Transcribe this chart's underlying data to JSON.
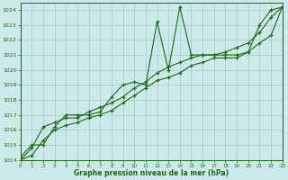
{
  "title": "Graphe pression niveau de la mer (hPa)",
  "bg_color": "#cce8e8",
  "grid_color": "#aacccc",
  "line_color": "#1a6b1a",
  "xlim": [
    0,
    23
  ],
  "ylim": [
    1014,
    1024.5
  ],
  "xticks": [
    0,
    1,
    2,
    3,
    4,
    5,
    6,
    7,
    8,
    9,
    10,
    11,
    12,
    13,
    14,
    15,
    16,
    17,
    18,
    19,
    20,
    21,
    22,
    23
  ],
  "yticks": [
    1014,
    1015,
    1016,
    1017,
    1018,
    1019,
    1020,
    1021,
    1022,
    1023,
    1024
  ],
  "series1_x": [
    0,
    1,
    2,
    3,
    4,
    5,
    6,
    7,
    8,
    9,
    10,
    11,
    12,
    13,
    14,
    15,
    16,
    17,
    18,
    19,
    20,
    21,
    22,
    23
  ],
  "series1_y": [
    1014.2,
    1015.0,
    1015.0,
    1016.2,
    1017.0,
    1017.0,
    1017.0,
    1017.2,
    1018.2,
    1019.0,
    1019.2,
    1019.0,
    1023.2,
    1020.0,
    1024.2,
    1021.0,
    1021.0,
    1021.0,
    1021.0,
    1021.0,
    1021.2,
    1023.0,
    1024.0,
    1024.2
  ],
  "series2_x": [
    0,
    1,
    2,
    3,
    4,
    5,
    6,
    7,
    8,
    9,
    10,
    11,
    12,
    13,
    14,
    15,
    16,
    17,
    18,
    19,
    20,
    21,
    22,
    23
  ],
  "series2_y": [
    1014.0,
    1014.8,
    1016.2,
    1016.5,
    1016.8,
    1016.8,
    1017.2,
    1017.5,
    1017.8,
    1018.2,
    1018.8,
    1019.2,
    1019.8,
    1020.2,
    1020.5,
    1020.8,
    1021.0,
    1021.0,
    1021.2,
    1021.5,
    1021.8,
    1022.5,
    1023.5,
    1024.2
  ],
  "series3_x": [
    0,
    1,
    2,
    3,
    4,
    5,
    6,
    7,
    8,
    9,
    10,
    11,
    12,
    13,
    14,
    15,
    16,
    17,
    18,
    19,
    20,
    21,
    22,
    23
  ],
  "series3_y": [
    1014.0,
    1014.3,
    1015.3,
    1016.0,
    1016.3,
    1016.5,
    1016.8,
    1017.0,
    1017.3,
    1017.8,
    1018.3,
    1018.8,
    1019.3,
    1019.5,
    1019.8,
    1020.3,
    1020.5,
    1020.8,
    1020.8,
    1020.8,
    1021.2,
    1021.8,
    1022.3,
    1024.2
  ]
}
